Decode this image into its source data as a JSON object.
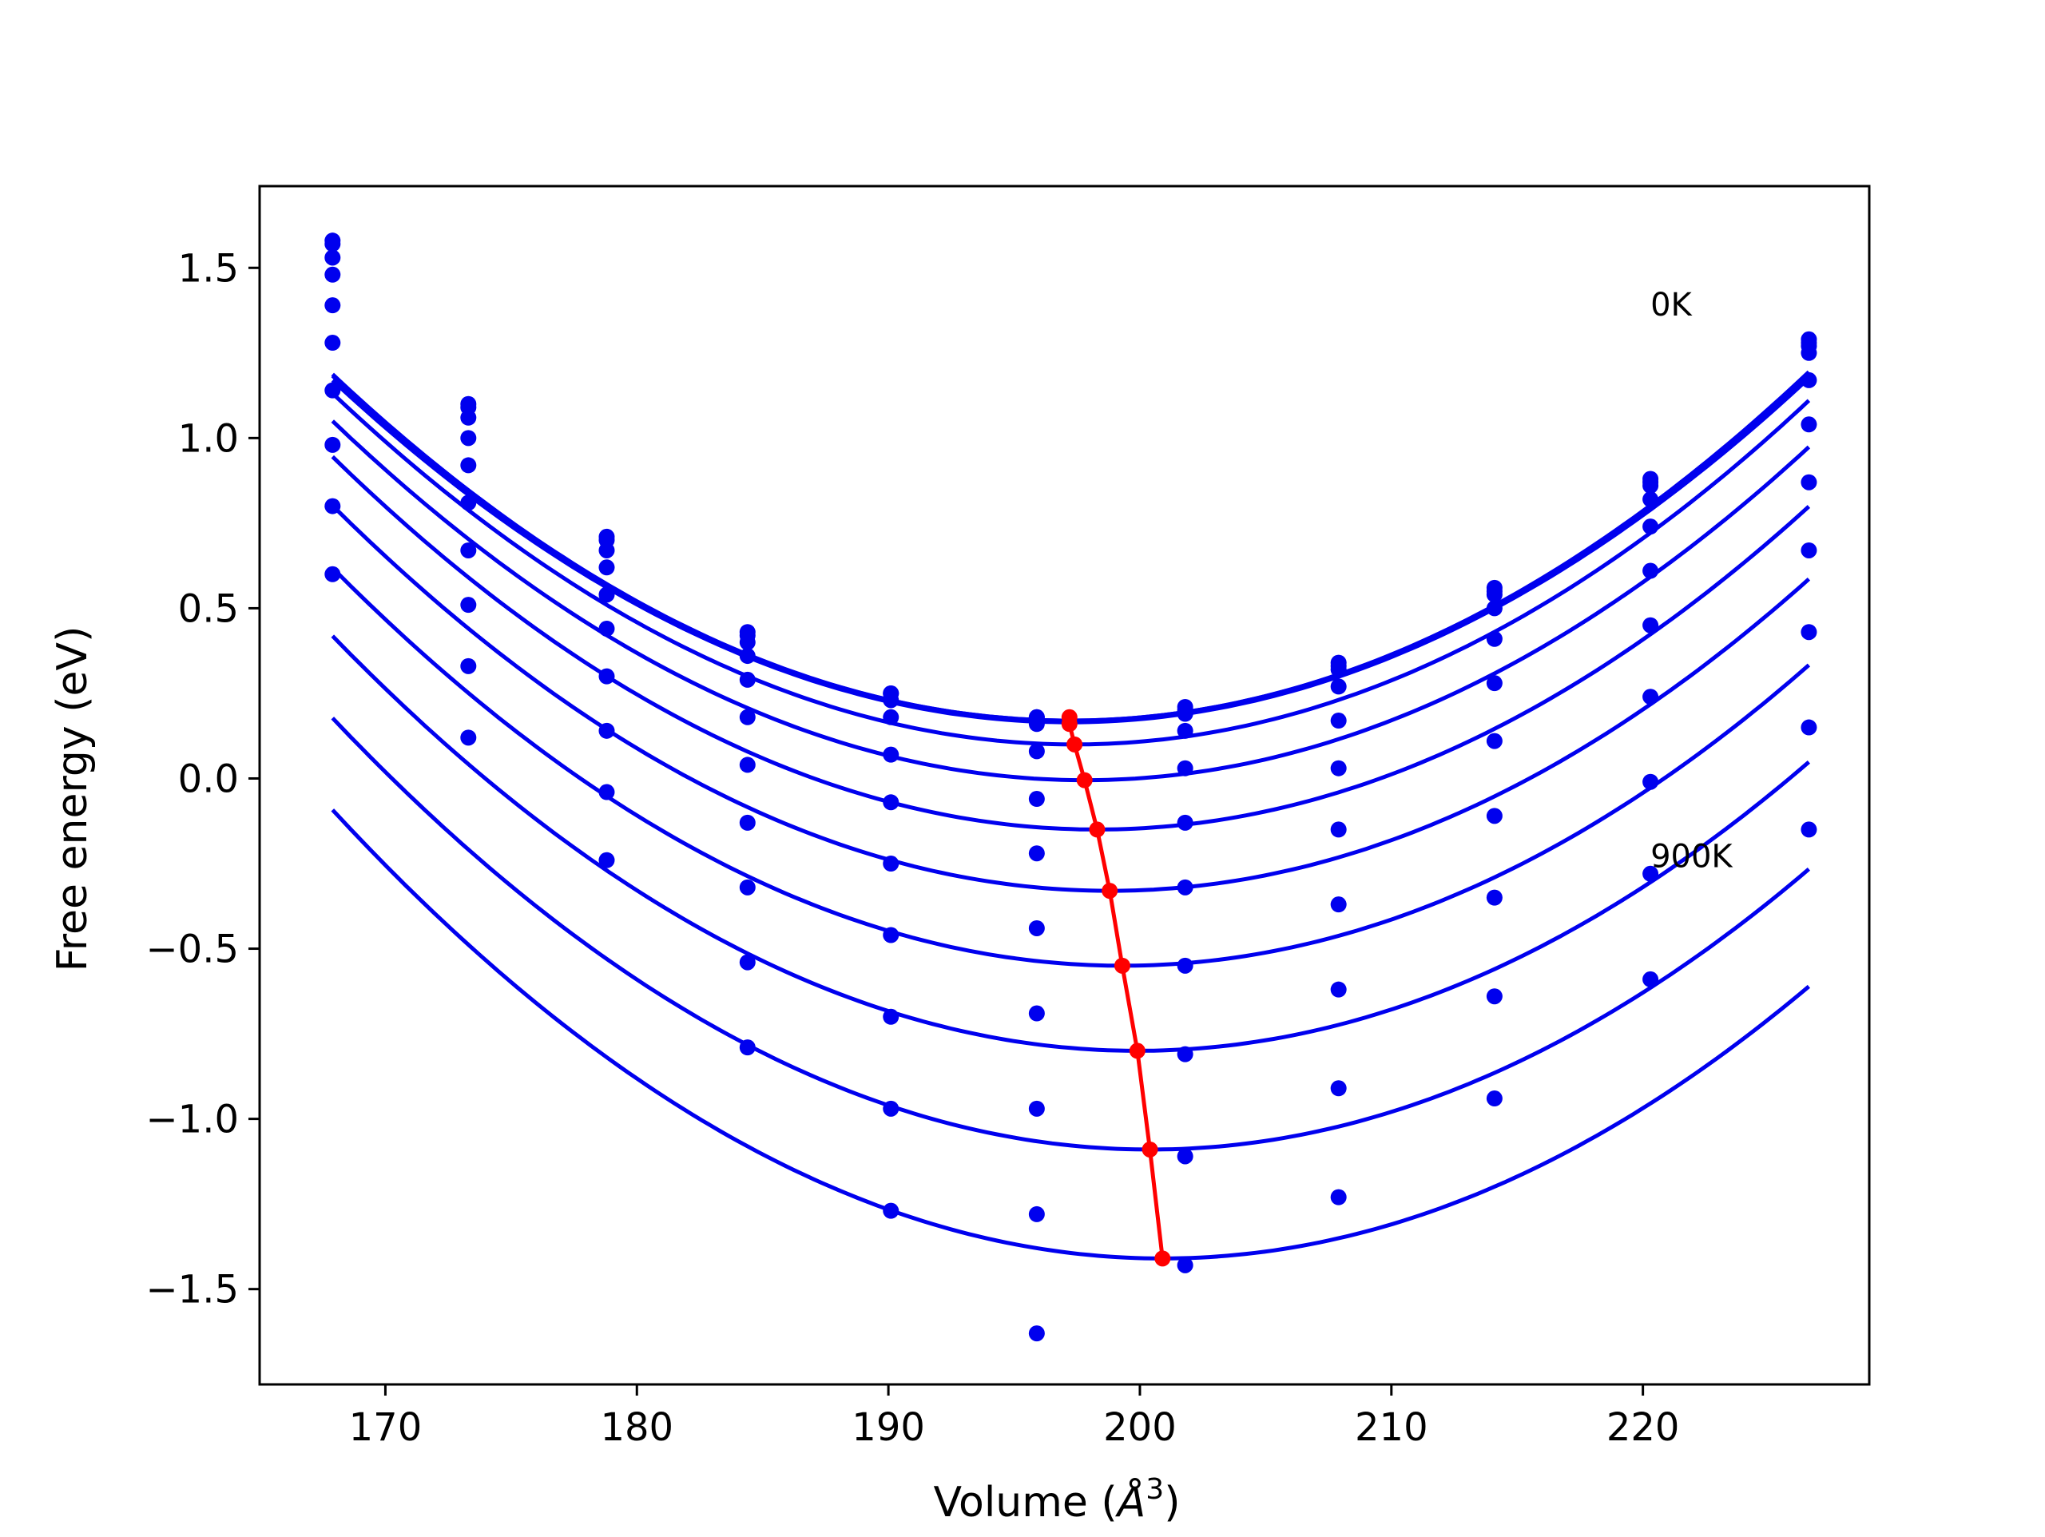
{
  "chart_data": {
    "type": "scatter",
    "title": "",
    "xlabel": "Volume (Å³)",
    "xlabel_base": "Volume (",
    "xlabel_symbol": "Å",
    "xlabel_exponent": "3",
    "xlabel_close": ")",
    "ylabel": "Free energy (eV)",
    "xlim": [
      165,
      229
    ],
    "ylim": [
      -1.78,
      1.74
    ],
    "grid": false,
    "legend": "none",
    "xticks": [
      170,
      180,
      190,
      200,
      210,
      220
    ],
    "xtick_labels": [
      "170",
      "180",
      "190",
      "200",
      "210",
      "220"
    ],
    "yticks": [
      1.5,
      1.0,
      0.5,
      0.0,
      -0.5,
      -1.0,
      -1.5
    ],
    "ytick_labels": [
      "1.5",
      "1.0",
      "0.5",
      "0.0",
      "−0.5",
      "−1.0",
      "−1.5"
    ],
    "annotations": [
      {
        "text": "0K",
        "x": 220.3,
        "y": 1.36
      },
      {
        "text": "900K",
        "x": 220.3,
        "y": -0.26
      }
    ],
    "colors": {
      "fit_curves": "#0000ee",
      "points": "#0000ee",
      "minimum_line": "#ff0000"
    },
    "volumes": [
      167.9,
      173.3,
      178.8,
      184.4,
      190.1,
      195.9,
      201.8,
      207.9,
      214.1,
      220.3,
      226.6
    ],
    "series": [
      {
        "points": [
          1.58,
          1.1,
          0.71,
          0.43,
          0.25,
          0.18,
          0.21,
          0.34,
          0.56,
          0.88,
          1.29
        ],
        "fit_min_v": 197.2,
        "fit_min_f": 0.17,
        "fit_a": 0.001185
      },
      {
        "points": [
          1.57,
          1.09,
          0.7,
          0.42,
          0.25,
          0.18,
          0.2,
          0.33,
          0.55,
          0.87,
          1.28
        ],
        "fit_min_v": 197.2,
        "fit_min_f": 0.17,
        "fit_a": 0.00118
      },
      {
        "points": [
          1.53,
          1.06,
          0.67,
          0.4,
          0.23,
          0.16,
          0.19,
          0.32,
          0.54,
          0.86,
          1.27
        ],
        "fit_min_v": 197.2,
        "fit_min_f": 0.165,
        "fit_a": 0.00117
      },
      {
        "points": [
          1.48,
          1.0,
          0.62,
          0.36,
          0.18,
          0.08,
          0.14,
          0.27,
          0.5,
          0.82,
          1.25
        ],
        "fit_min_v": 197.4,
        "fit_min_f": 0.1,
        "fit_a": 0.001185
      },
      {
        "points": [
          1.39,
          0.92,
          0.54,
          0.29,
          0.07,
          -0.06,
          0.03,
          0.17,
          0.41,
          0.74,
          1.17
        ],
        "fit_min_v": 197.8,
        "fit_min_f": -0.005,
        "fit_a": 0.00118
      },
      {
        "points": [
          1.28,
          0.81,
          0.44,
          0.18,
          -0.07,
          -0.22,
          -0.13,
          0.03,
          0.28,
          0.61,
          1.04
        ],
        "fit_min_v": 198.3,
        "fit_min_f": -0.15,
        "fit_a": 0.001185
      },
      {
        "points": [
          1.14,
          0.67,
          0.3,
          0.04,
          -0.25,
          -0.44,
          -0.32,
          -0.15,
          0.11,
          0.45,
          0.87
        ],
        "fit_min_v": 198.8,
        "fit_min_f": -0.33,
        "fit_a": 0.001185
      },
      {
        "points": [
          0.98,
          0.51,
          0.14,
          -0.13,
          -0.46,
          -0.69,
          -0.55,
          -0.37,
          -0.11,
          0.24,
          0.67
        ],
        "fit_min_v": 199.3,
        "fit_min_f": -0.55,
        "fit_a": 0.001185
      },
      {
        "points": [
          0.8,
          0.33,
          -0.04,
          -0.32,
          -0.7,
          -0.97,
          -0.81,
          -0.62,
          -0.35,
          -0.01,
          0.43
        ],
        "fit_min_v": 199.9,
        "fit_min_f": -0.8,
        "fit_a": 0.00119
      },
      {
        "points": [
          0.6,
          0.12,
          -0.24,
          -0.54,
          -0.97,
          -1.28,
          -1.11,
          -0.91,
          -0.64,
          -0.28,
          0.15
        ],
        "fit_min_v": 200.4,
        "fit_min_f": -1.09,
        "fit_a": 0.0012
      },
      {
        "points": [
          null,
          null,
          null,
          -0.79,
          -1.27,
          -1.63,
          -1.43,
          -1.23,
          -0.94,
          -0.59,
          -0.15
        ],
        "fit_min_v": 200.9,
        "fit_min_f": -1.41,
        "fit_a": 0.00121
      }
    ],
    "minimum_line": {
      "x": [
        197.2,
        197.2,
        197.4,
        197.8,
        198.3,
        198.8,
        199.3,
        199.9,
        200.4,
        200.9
      ],
      "y": [
        0.18,
        0.16,
        0.1,
        -0.005,
        -0.15,
        -0.33,
        -0.55,
        -0.8,
        -1.09,
        -1.41
      ]
    }
  }
}
